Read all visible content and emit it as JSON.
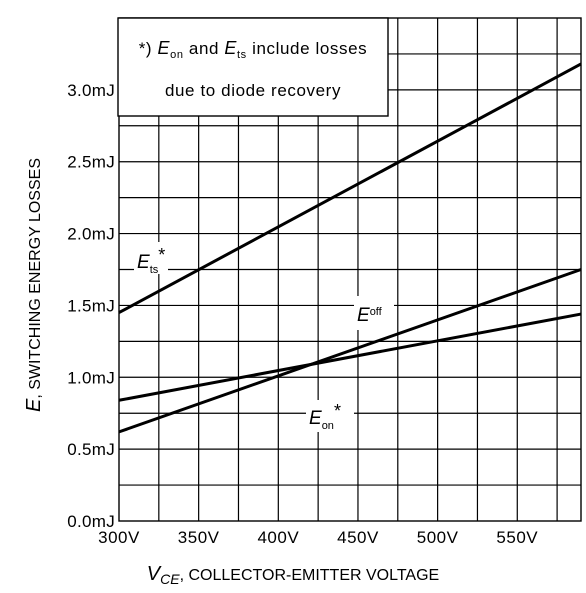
{
  "chart_data": {
    "type": "line",
    "xlabel": {
      "sym": "V",
      "sub": "CE",
      "rest": ", COLLECTOR-EMITTER VOLTAGE"
    },
    "ylabel": {
      "sym": "E",
      "rest": ", SWITCHING ENERGY LOSSES"
    },
    "xlim": [
      300,
      590
    ],
    "ylim": [
      0,
      3.5
    ],
    "x_ticks": [
      300,
      350,
      400,
      450,
      500,
      550
    ],
    "x_tick_labels": [
      "300V",
      "350V",
      "400V",
      "450V",
      "500V",
      "550V"
    ],
    "y_ticks": [
      0,
      0.5,
      1.0,
      1.5,
      2.0,
      2.5,
      3.0
    ],
    "y_tick_labels": [
      "0.0mJ",
      "0.5mJ",
      "1.0mJ",
      "1.5mJ",
      "2.0mJ",
      "2.5mJ",
      "3.0mJ"
    ],
    "grid": true,
    "series": [
      {
        "name": "Ets",
        "label": {
          "sym": "E",
          "sub": "ts",
          "suffix": "*"
        },
        "x": [
          300,
          590
        ],
        "y": [
          1.45,
          3.18
        ]
      },
      {
        "name": "Eoff",
        "label": {
          "sym": "E",
          "sub": "off",
          "suffix": ""
        },
        "x": [
          300,
          590
        ],
        "y": [
          0.62,
          1.75
        ]
      },
      {
        "name": "Eon",
        "label": {
          "sym": "E",
          "sub": "on",
          "suffix": "*"
        },
        "x": [
          300,
          590
        ],
        "y": [
          0.84,
          1.44
        ]
      }
    ],
    "note": {
      "line1": {
        "prefix": "*) ",
        "s1": "E",
        "sub1": "on",
        "mid": " and ",
        "s2": "E",
        "sub2": "ts",
        "suffix": " include losses"
      },
      "line2": "due to diode recovery"
    }
  }
}
